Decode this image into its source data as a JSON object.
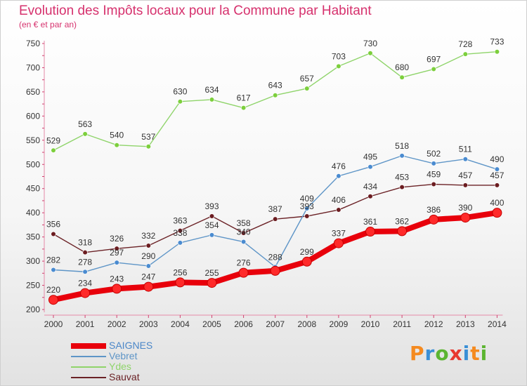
{
  "chart_data": {
    "type": "line",
    "title": "Evolution des Impôts locaux pour la Commune par Habitant",
    "subtitle": "(en € et par an)",
    "xlabel": "",
    "ylabel": "",
    "ylim": [
      200,
      750
    ],
    "yticks": [
      200,
      250,
      300,
      350,
      400,
      450,
      500,
      550,
      600,
      650,
      700,
      750
    ],
    "grid": false,
    "legend_position": "bottom-left",
    "categories": [
      "2000",
      "2001",
      "2002",
      "2003",
      "2004",
      "2005",
      "2006",
      "2007",
      "2008",
      "2009",
      "2010",
      "2011",
      "2012",
      "2013",
      "2014"
    ],
    "series": [
      {
        "name": "SAIGNES",
        "color": "#e8000b",
        "marker_color": "#ff2a2a",
        "values": [
          220,
          234,
          243,
          247,
          256,
          255,
          276,
          280,
          299,
          337,
          361,
          362,
          386,
          390,
          400
        ],
        "labels": [
          "220",
          "234",
          "243",
          "247",
          "256",
          "255",
          "276",
          "",
          "299",
          "337",
          "361",
          "362",
          "386",
          "390",
          "400"
        ]
      },
      {
        "name": "Vebret",
        "color": "#5e95c7",
        "marker_color": "#4a8bd0",
        "values": [
          282,
          278,
          297,
          290,
          338,
          354,
          340,
          288,
          409,
          476,
          495,
          518,
          502,
          511,
          490
        ],
        "labels": [
          "282",
          "278",
          "297",
          "290",
          "338",
          "354",
          "340",
          "288",
          "409",
          "476",
          "495",
          "518",
          "502",
          "511",
          "490"
        ]
      },
      {
        "name": "Ydes",
        "color": "#8fd46a",
        "marker_color": "#7ccf3c",
        "values": [
          529,
          563,
          540,
          537,
          630,
          634,
          617,
          643,
          657,
          703,
          730,
          680,
          697,
          728,
          733
        ],
        "labels": [
          "529",
          "563",
          "540",
          "537",
          "630",
          "634",
          "617",
          "643",
          "657",
          "703",
          "730",
          "680",
          "697",
          "728",
          "733"
        ]
      },
      {
        "name": "Sauvat",
        "color": "#6b2226",
        "marker_color": "#6b1c20",
        "values": [
          356,
          318,
          326,
          332,
          363,
          393,
          358,
          387,
          393,
          406,
          434,
          453,
          459,
          457,
          457
        ],
        "labels": [
          "356",
          "318",
          "326",
          "332",
          "363",
          "393",
          "358",
          "387",
          "393",
          "406",
          "434",
          "453",
          "459",
          "457",
          "457"
        ]
      }
    ]
  },
  "logo": {
    "letters": [
      {
        "ch": "P",
        "color": "#f58a1f"
      },
      {
        "ch": "r",
        "color": "#3a8fd6"
      },
      {
        "ch": "o",
        "color": "#5cb531"
      },
      {
        "ch": "x",
        "color": "#e8382f"
      },
      {
        "ch": "i",
        "color": "#3a8fd6"
      },
      {
        "ch": "t",
        "color": "#f58a1f"
      },
      {
        "ch": "i",
        "color": "#5cb531"
      }
    ]
  }
}
